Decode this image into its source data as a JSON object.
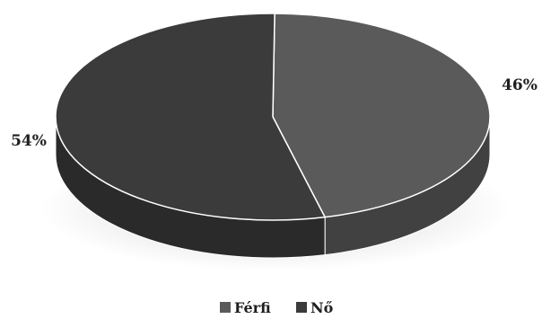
{
  "chart_data": {
    "type": "pie",
    "title": "",
    "style": "3d",
    "categories": [
      "Férfi",
      "Nő"
    ],
    "values": [
      46,
      54
    ],
    "labels": [
      "46%",
      "54%"
    ],
    "colors": [
      "#5a5a5a",
      "#3b3b3b"
    ],
    "legend_position": "bottom"
  }
}
